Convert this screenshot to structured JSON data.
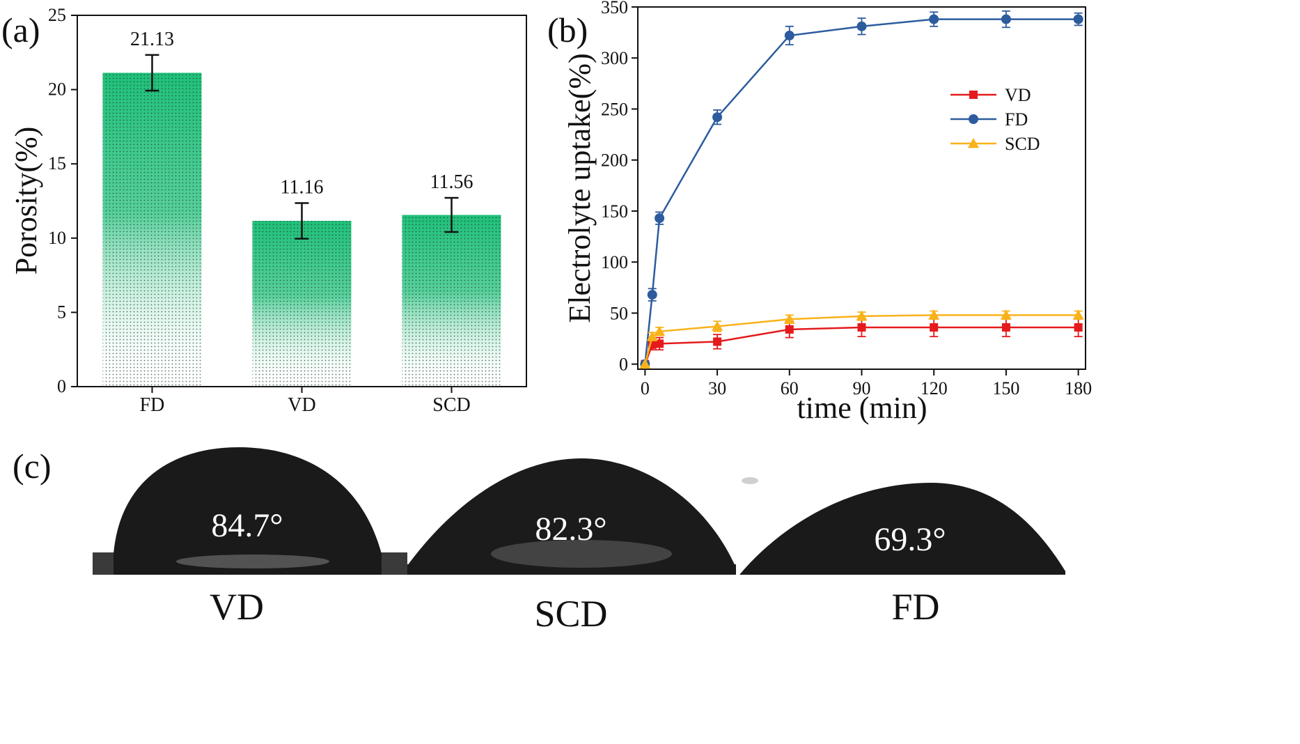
{
  "panels": {
    "a": "(a)",
    "b": "(b)",
    "c": "(c)"
  },
  "chart_data": [
    {
      "type": "bar",
      "categories": [
        "FD",
        "VD",
        "SCD"
      ],
      "values": [
        21.13,
        11.16,
        11.56
      ],
      "errors": [
        1.2,
        1.2,
        1.15
      ],
      "data_labels": [
        "21.13",
        "11.16",
        "11.56"
      ],
      "xlabel": "",
      "ylabel": "Porosity(%)",
      "ylim": [
        0,
        25
      ],
      "yticks": [
        0,
        5,
        10,
        15,
        20,
        25
      ],
      "grid": false,
      "bar_color": "#1fc07a"
    },
    {
      "type": "line",
      "xlabel": "time (min)",
      "ylabel": "Electrolyte uptake(%)",
      "xlim": [
        -3,
        183
      ],
      "ylim": [
        -5,
        350
      ],
      "xticks": [
        0,
        30,
        60,
        90,
        120,
        150,
        180
      ],
      "yticks": [
        0,
        50,
        100,
        150,
        200,
        250,
        300,
        350
      ],
      "legend_position": "top-right",
      "grid": false,
      "series": [
        {
          "name": "VD",
          "color": "#e41a1c",
          "marker": "square",
          "x": [
            0,
            3,
            6,
            30,
            60,
            90,
            120,
            150,
            180
          ],
          "y": [
            0,
            19,
            20,
            22,
            34,
            36,
            36,
            36,
            36
          ],
          "err": [
            0,
            5,
            6,
            7,
            8,
            9,
            9,
            9,
            9
          ]
        },
        {
          "name": "FD",
          "color": "#2c5c9e",
          "marker": "circle",
          "x": [
            0,
            3,
            6,
            30,
            60,
            90,
            120,
            150,
            180
          ],
          "y": [
            0,
            68,
            143,
            242,
            322,
            331,
            338,
            338,
            338
          ],
          "err": [
            0,
            6,
            6,
            7,
            9,
            8,
            7,
            8,
            6
          ]
        },
        {
          "name": "SCD",
          "color": "#f9b21a",
          "marker": "triangle",
          "x": [
            0,
            3,
            6,
            30,
            60,
            90,
            120,
            150,
            180
          ],
          "y": [
            0,
            27,
            32,
            37,
            44,
            47,
            48,
            48,
            48
          ],
          "err": [
            0,
            4,
            4,
            5,
            4,
            4,
            4,
            4,
            4
          ]
        }
      ]
    }
  ],
  "drops": [
    {
      "angle": "84.7°",
      "label": "VD"
    },
    {
      "angle": "82.3°",
      "label": "SCD"
    },
    {
      "angle": "69.3°",
      "label": "FD"
    }
  ]
}
